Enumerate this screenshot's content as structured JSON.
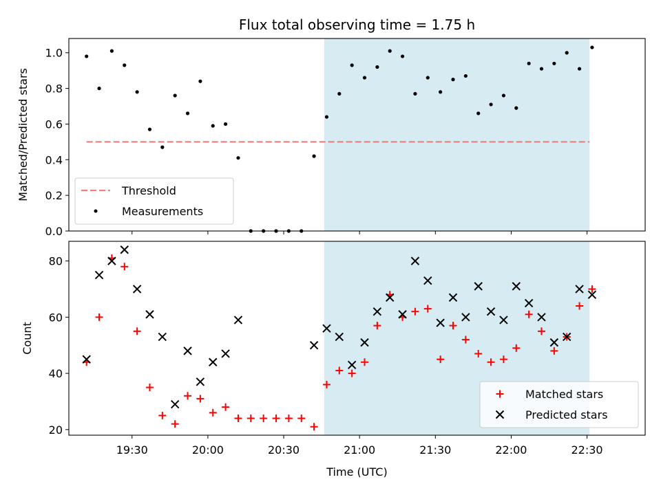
{
  "chart_data": [
    {
      "type": "scatter",
      "title": "Flux total observing time = 1.75 h",
      "ylabel": "Matched/Predicted stars",
      "xlabel": "",
      "xlim": [
        "19:05",
        "22:53"
      ],
      "ylim": [
        0,
        1.08
      ],
      "yticks": [
        "0.0",
        "0.2",
        "0.4",
        "0.6",
        "0.8",
        "1.0"
      ],
      "shaded_region": {
        "start": "20:46",
        "end": "22:31",
        "color": "#add8e6"
      },
      "threshold": {
        "name": "Threshold",
        "value": 0.5,
        "x_start": "19:12",
        "x_end": "22:31",
        "color": "#f08080"
      },
      "legend": {
        "placement": "lower-left",
        "entries": [
          "Threshold",
          "Measurements"
        ]
      },
      "series": [
        {
          "name": "Measurements",
          "color": "#000000",
          "x": [
            "19:12",
            "19:17",
            "19:22",
            "19:27",
            "19:32",
            "19:37",
            "19:42",
            "19:47",
            "19:52",
            "19:57",
            "20:02",
            "20:07",
            "20:12",
            "20:17",
            "20:22",
            "20:27",
            "20:32",
            "20:37",
            "20:42",
            "20:47",
            "20:52",
            "20:57",
            "21:02",
            "21:07",
            "21:12",
            "21:17",
            "21:22",
            "21:27",
            "21:32",
            "21:37",
            "21:42",
            "21:47",
            "21:52",
            "21:57",
            "22:02",
            "22:07",
            "22:12",
            "22:17",
            "22:22",
            "22:27",
            "22:32"
          ],
          "values": [
            0.98,
            0.8,
            1.01,
            0.93,
            0.78,
            0.57,
            0.47,
            0.76,
            0.66,
            0.84,
            0.59,
            0.6,
            0.41,
            0.0,
            0.0,
            0.0,
            0.0,
            0.0,
            0.42,
            0.64,
            0.77,
            0.93,
            0.86,
            0.92,
            1.01,
            0.98,
            0.77,
            0.86,
            0.78,
            0.85,
            0.87,
            0.66,
            0.71,
            0.76,
            0.69,
            0.94,
            0.91,
            0.94,
            1.0,
            0.91,
            1.03
          ]
        }
      ]
    },
    {
      "type": "scatter",
      "title": "",
      "ylabel": "Count",
      "xlabel": "Time (UTC)",
      "xlim": [
        "19:05",
        "22:53"
      ],
      "ylim": [
        18,
        87
      ],
      "yticks": [
        "20",
        "40",
        "60",
        "80"
      ],
      "xticks": [
        "19:30",
        "20:00",
        "20:30",
        "21:00",
        "21:30",
        "22:00",
        "22:30"
      ],
      "shaded_region": {
        "start": "20:46",
        "end": "22:31",
        "color": "#add8e6"
      },
      "legend": {
        "placement": "lower-right",
        "entries": [
          "Matched stars",
          "Predicted stars"
        ]
      },
      "series": [
        {
          "name": "Matched stars",
          "marker": "plus",
          "color": "#ff0000",
          "x": [
            "19:12",
            "19:17",
            "19:22",
            "19:27",
            "19:32",
            "19:37",
            "19:42",
            "19:47",
            "19:52",
            "19:57",
            "20:02",
            "20:07",
            "20:12",
            "20:17",
            "20:22",
            "20:27",
            "20:32",
            "20:37",
            "20:42",
            "20:47",
            "20:52",
            "20:57",
            "21:02",
            "21:07",
            "21:12",
            "21:17",
            "21:22",
            "21:27",
            "21:32",
            "21:37",
            "21:42",
            "21:47",
            "21:52",
            "21:57",
            "22:02",
            "22:07",
            "22:12",
            "22:17",
            "22:22",
            "22:27",
            "22:32"
          ],
          "values": [
            44,
            60,
            81,
            78,
            55,
            35,
            25,
            22,
            32,
            31,
            26,
            28,
            24,
            24,
            24,
            24,
            24,
            24,
            21,
            36,
            41,
            40,
            44,
            57,
            68,
            60,
            62,
            63,
            45,
            57,
            52,
            47,
            44,
            45,
            49,
            61,
            55,
            48,
            53,
            64,
            70
          ]
        },
        {
          "name": "Predicted stars",
          "marker": "x",
          "color": "#000000",
          "x": [
            "19:12",
            "19:17",
            "19:22",
            "19:27",
            "19:32",
            "19:37",
            "19:42",
            "19:47",
            "19:52",
            "19:57",
            "20:02",
            "20:07",
            "20:12",
            "20:42",
            "20:47",
            "20:52",
            "20:57",
            "21:02",
            "21:07",
            "21:12",
            "21:17",
            "21:22",
            "21:27",
            "21:32",
            "21:37",
            "21:42",
            "21:47",
            "21:52",
            "21:57",
            "22:02",
            "22:07",
            "22:12",
            "22:17",
            "22:22",
            "22:27",
            "22:32"
          ],
          "values": [
            45,
            75,
            80,
            84,
            70,
            61,
            53,
            29,
            48,
            37,
            44,
            47,
            59,
            50,
            56,
            53,
            43,
            51,
            62,
            67,
            61,
            80,
            73,
            58,
            67,
            60,
            71,
            62,
            59,
            71,
            65,
            60,
            51,
            53,
            70,
            68
          ]
        }
      ]
    }
  ]
}
